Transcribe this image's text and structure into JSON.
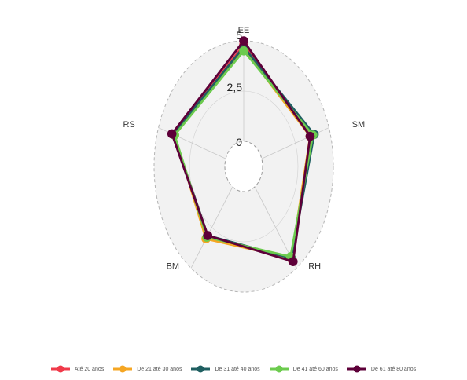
{
  "chart_data": {
    "type": "radar",
    "axes": [
      "EE",
      "SM",
      "RH",
      "BM",
      "RS"
    ],
    "rlim": [
      0,
      5
    ],
    "rticks": [
      "0",
      "2,5",
      "5"
    ],
    "grid": true,
    "legend_position": "bottom",
    "series": [
      {
        "name": "Até 20 anos",
        "color": "#f03a4a",
        "values": [
          4.8,
          3.7,
          4.5,
          3.0,
          3.9
        ]
      },
      {
        "name": "De 21 até 30 anos",
        "color": "#f5a623",
        "values": [
          4.6,
          3.6,
          4.4,
          3.2,
          3.8
        ]
      },
      {
        "name": "De 31 até 40 anos",
        "color": "#1f5f61",
        "values": [
          4.7,
          3.9,
          4.4,
          3.0,
          3.9
        ]
      },
      {
        "name": "De 41 até 60 anos",
        "color": "#6ccb4e",
        "values": [
          4.5,
          3.8,
          4.3,
          3.1,
          3.8
        ]
      },
      {
        "name": "De 61 até 80 anos",
        "color": "#5e0039",
        "values": [
          5.0,
          3.6,
          4.6,
          3.0,
          4.0
        ]
      }
    ]
  }
}
